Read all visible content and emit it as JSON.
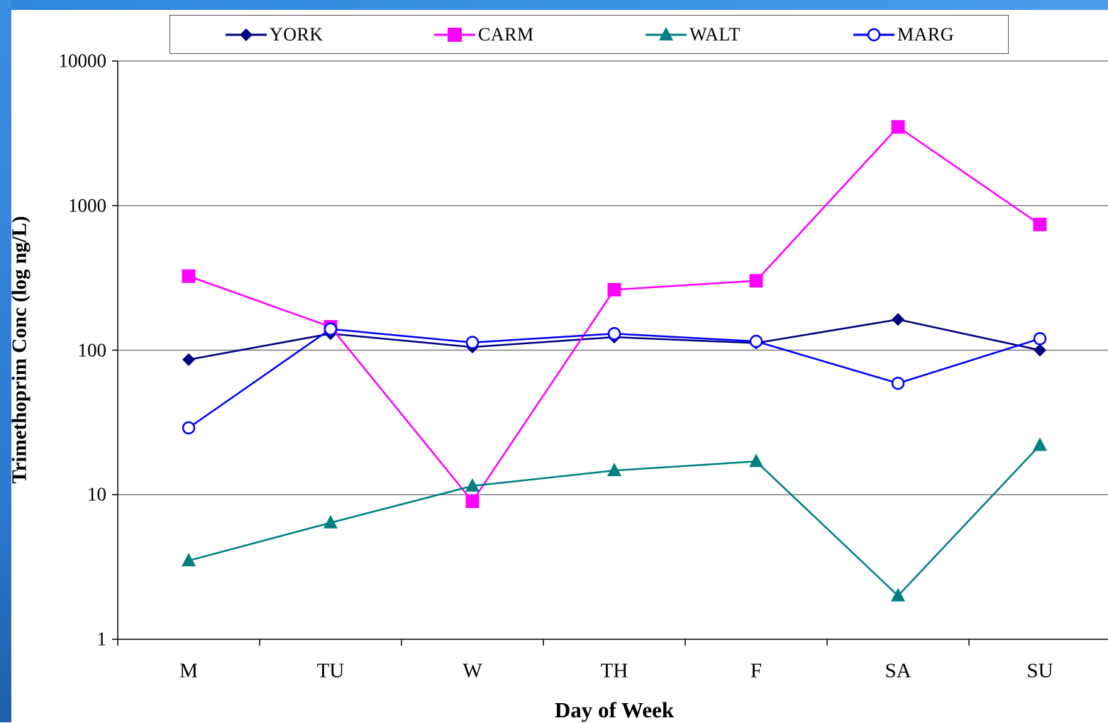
{
  "chart_data": {
    "type": "line",
    "ylabel": "Trimethoprim Conc (log ng/L)",
    "xlabel": "Day of Week",
    "yscale": "log",
    "ylim": [
      1,
      10000
    ],
    "yticks": [
      "1",
      "10",
      "100",
      "1000",
      "10000"
    ],
    "grid": "horizontal",
    "legend_position": "top",
    "categories": [
      "M",
      "TU",
      "W",
      "TH",
      "F",
      "SA",
      "SU"
    ],
    "series": [
      {
        "name": "YORK",
        "color": "#000080",
        "marker": "diamond",
        "values": [
          86,
          130,
          105,
          123,
          112,
          163,
          100
        ]
      },
      {
        "name": "CARM",
        "color": "#ff00ff",
        "marker": "square",
        "values": [
          325,
          145,
          9,
          262,
          302,
          3500,
          740
        ]
      },
      {
        "name": "WALT",
        "color": "#008080",
        "marker": "triangle",
        "values": [
          3.5,
          6.4,
          11.5,
          14.7,
          17,
          2,
          22
        ]
      },
      {
        "name": "MARG",
        "color": "#0000ff",
        "marker": "open-circle",
        "values": [
          29,
          140,
          113,
          130,
          115,
          59,
          120
        ]
      }
    ]
  }
}
